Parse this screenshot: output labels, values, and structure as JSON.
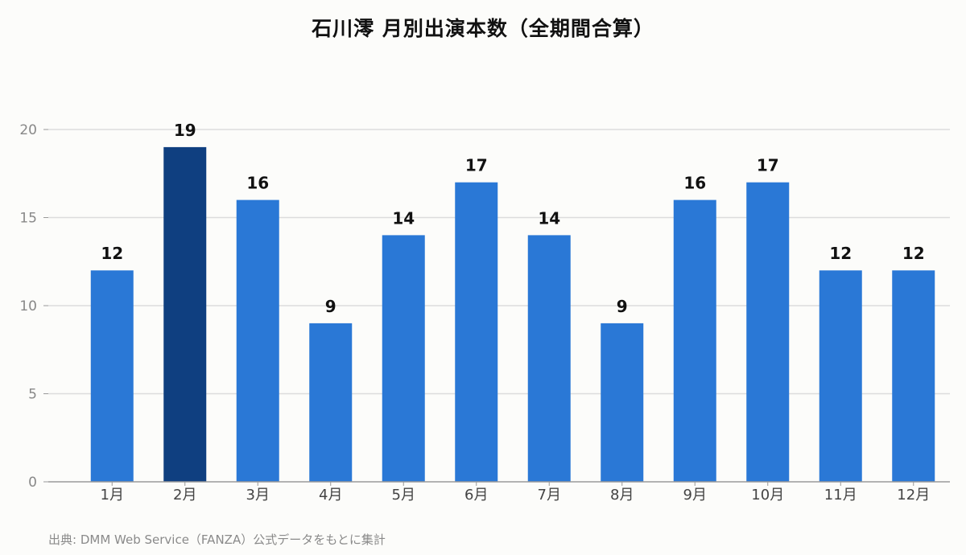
{
  "colors": {
    "bar": "#2a78d6",
    "bar_highlight": "#0f3f80",
    "grid": "#dcdcdc",
    "axis": "#999999",
    "tick_text": "#888888",
    "category_text": "#444444",
    "value_text": "#111111"
  },
  "chart_data": {
    "type": "bar",
    "title": "石川澪 月別出演本数（全期間合算）",
    "categories": [
      "1月",
      "2月",
      "3月",
      "4月",
      "5月",
      "6月",
      "7月",
      "8月",
      "9月",
      "10月",
      "11月",
      "12月"
    ],
    "values": [
      12,
      19,
      16,
      9,
      14,
      17,
      14,
      9,
      16,
      17,
      12,
      12
    ],
    "highlight_index": 1,
    "ylim": [
      0,
      20
    ],
    "yticks": [
      0,
      5,
      10,
      15,
      20
    ],
    "xlabel": "",
    "ylabel": "",
    "grid": true,
    "legend": "none",
    "data_labels": true
  },
  "source": "出典: DMM Web Service（FANZA）公式データをもとに集計"
}
